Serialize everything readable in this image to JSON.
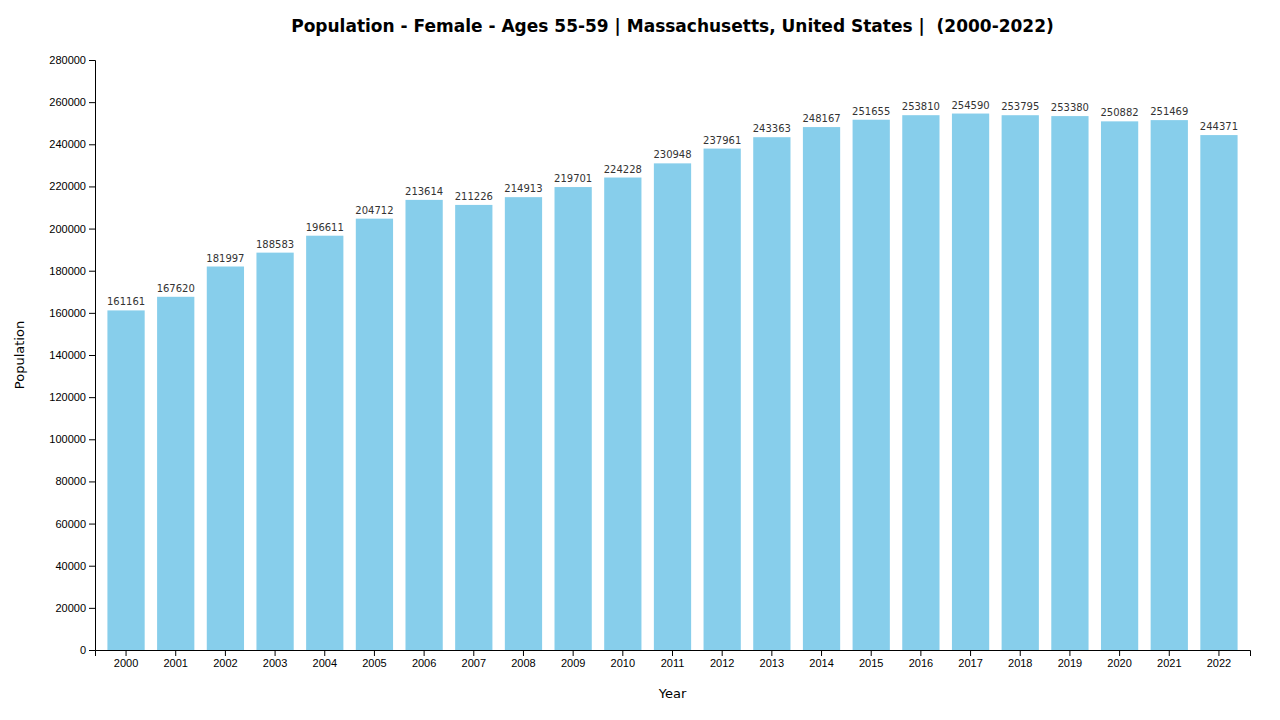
{
  "chart_data": {
    "type": "bar",
    "title": "Population - Female - Ages 55-59 | Massachusetts, United States |  (2000-2022)",
    "xlabel": "Year",
    "ylabel": "Population",
    "categories": [
      "2000",
      "2001",
      "2002",
      "2003",
      "2004",
      "2005",
      "2006",
      "2007",
      "2008",
      "2009",
      "2010",
      "2011",
      "2012",
      "2013",
      "2014",
      "2015",
      "2016",
      "2017",
      "2018",
      "2019",
      "2020",
      "2021",
      "2022"
    ],
    "values": [
      161161,
      167620,
      181997,
      188583,
      196611,
      204712,
      213614,
      211226,
      214913,
      219701,
      224228,
      230948,
      237961,
      243363,
      248167,
      251655,
      253810,
      254590,
      253795,
      253380,
      250882,
      251469,
      244371
    ],
    "color": "#87CEEB",
    "ylim": [
      0,
      280000
    ],
    "yticks": [
      0,
      20000,
      40000,
      60000,
      80000,
      100000,
      120000,
      140000,
      160000,
      180000,
      200000,
      220000,
      240000,
      260000,
      280000
    ],
    "grid": false,
    "data_labels": true
  }
}
